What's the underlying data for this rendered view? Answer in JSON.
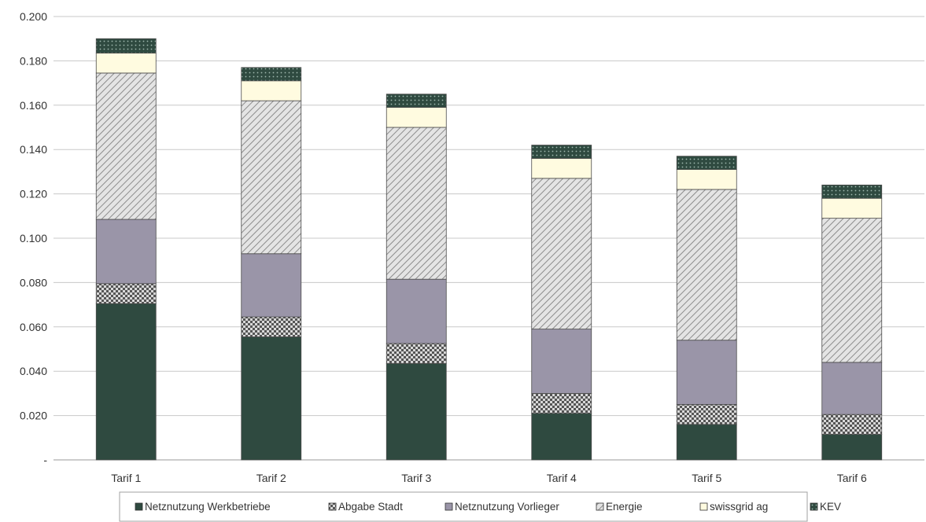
{
  "chart_data": {
    "type": "bar",
    "stacked": true,
    "title": "",
    "xlabel": "",
    "ylabel": "",
    "ylim": [
      0,
      0.2
    ],
    "y_ticks": [
      0,
      0.02,
      0.04,
      0.06,
      0.08,
      0.1,
      0.12,
      0.14,
      0.16,
      0.18,
      0.2
    ],
    "y_tick_labels": [
      "-",
      "0.020",
      "0.040",
      "0.060",
      "0.080",
      "0.100",
      "0.120",
      "0.140",
      "0.160",
      "0.180",
      "0.200"
    ],
    "grid": true,
    "legend_position": "bottom",
    "categories": [
      "Tarif 1",
      "Tarif 2",
      "Tarif 3",
      "Tarif 4",
      "Tarif 5",
      "Tarif 6"
    ],
    "series": [
      {
        "name": "Netznutzung Werkbetriebe",
        "color": "#2f4a40",
        "pattern": "solid",
        "values": [
          0.0705,
          0.0555,
          0.0435,
          0.021,
          0.016,
          0.0115
        ]
      },
      {
        "name": "Abgabe Stadt",
        "color": "#8a8a8a",
        "pattern": "checker",
        "values": [
          0.009,
          0.009,
          0.009,
          0.009,
          0.009,
          0.009
        ]
      },
      {
        "name": "Netznutzung Vorlieger",
        "color": "#9a95a8",
        "pattern": "solid",
        "values": [
          0.029,
          0.0285,
          0.029,
          0.029,
          0.029,
          0.0235
        ]
      },
      {
        "name": "Energie",
        "color": "#d9d9d9",
        "pattern": "diagonal",
        "values": [
          0.066,
          0.069,
          0.0685,
          0.068,
          0.068,
          0.065
        ]
      },
      {
        "name": "swissgrid ag",
        "color": "#fffbe0",
        "pattern": "solid",
        "values": [
          0.009,
          0.009,
          0.009,
          0.009,
          0.009,
          0.009
        ]
      },
      {
        "name": "KEV",
        "color": "#2f4a40",
        "pattern": "dotted",
        "values": [
          0.0065,
          0.006,
          0.006,
          0.006,
          0.006,
          0.006
        ]
      }
    ]
  }
}
